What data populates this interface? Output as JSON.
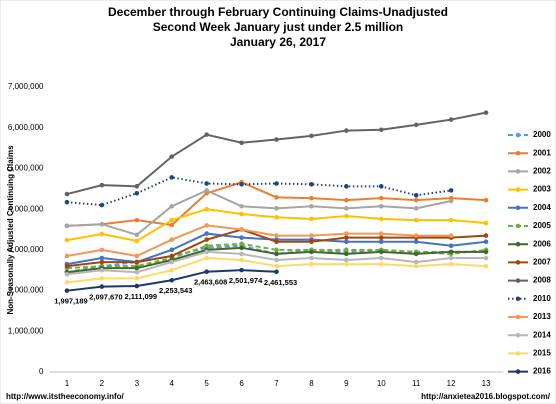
{
  "chart_data": {
    "type": "line",
    "title": [
      "December through February Continuing Claims-Unadjusted",
      "Second Week January just under 2.5 million",
      "January 26, 2017"
    ],
    "y_label": "Non-Seasonally Adjusted Continuing Claims",
    "categories": [
      "1",
      "2",
      "3",
      "4",
      "5",
      "6",
      "7",
      "8",
      "9",
      "10",
      "11",
      "12",
      "13"
    ],
    "ylim": [
      0,
      7000000
    ],
    "yticks": [
      {
        "value": 0,
        "label": "0"
      },
      {
        "value": 1000000,
        "label": "1,000,000"
      },
      {
        "value": 2000000,
        "label": "2,000,000"
      },
      {
        "value": 3000000,
        "label": "3,000,000"
      },
      {
        "value": 4000000,
        "label": "4,000,000"
      },
      {
        "value": 5000000,
        "label": "5,000,000"
      },
      {
        "value": 6000000,
        "label": "6,000,000"
      },
      {
        "value": 7000000,
        "label": "7,000,000"
      }
    ],
    "grid": false,
    "legend": "right",
    "series": [
      {
        "name": "2000",
        "color": "#5b9bd5",
        "dash": "dashed",
        "values": [
          2450000,
          2600000,
          2700000,
          2850000,
          3050000,
          3100000,
          2900000,
          3000000,
          2950000,
          3000000,
          2950000,
          2950000,
          2950000
        ]
      },
      {
        "name": "2001",
        "color": "#ed7d31",
        "dash": "solid",
        "values": [
          3590000,
          3630000,
          3730000,
          3610000,
          4390000,
          4660000,
          4290000,
          4270000,
          4220000,
          4270000,
          4220000,
          4270000,
          4220000
        ]
      },
      {
        "name": "2002",
        "color": "#a5a5a5",
        "dash": "solid",
        "values": [
          3590000,
          3630000,
          3370000,
          4070000,
          4460000,
          4070000,
          4020000,
          4070000,
          4020000,
          4070000,
          4020000,
          4200000,
          null
        ]
      },
      {
        "name": "2003",
        "color": "#ffc000",
        "dash": "solid",
        "values": [
          3240000,
          3390000,
          3220000,
          3730000,
          4000000,
          3880000,
          3800000,
          3760000,
          3830000,
          3760000,
          3730000,
          3730000,
          3660000
        ]
      },
      {
        "name": "2004",
        "color": "#4472c4",
        "dash": "solid",
        "values": [
          2650000,
          2800000,
          2700000,
          3000000,
          3400000,
          3300000,
          3250000,
          3250000,
          3200000,
          3200000,
          3200000,
          3100000,
          3200000
        ]
      },
      {
        "name": "2005",
        "color": "#70ad47",
        "dash": "dashed",
        "values": [
          2550000,
          2600000,
          2600000,
          2800000,
          3100000,
          3150000,
          3000000,
          3000000,
          3000000,
          3000000,
          2950000,
          2900000,
          3000000
        ]
      },
      {
        "name": "2006",
        "color": "#43682b",
        "dash": "solid",
        "values": [
          2450000,
          2550000,
          2550000,
          2750000,
          3000000,
          3050000,
          2900000,
          2950000,
          2900000,
          2950000,
          2900000,
          2950000,
          2950000
        ]
      },
      {
        "name": "2007",
        "color": "#9e480e",
        "dash": "solid",
        "values": [
          2600000,
          2700000,
          2700000,
          2850000,
          3250000,
          3500000,
          3200000,
          3200000,
          3300000,
          3300000,
          3300000,
          3300000,
          3350000
        ]
      },
      {
        "name": "2008",
        "color": "#636363",
        "dash": "solid",
        "values": [
          4370000,
          4590000,
          4560000,
          5290000,
          5830000,
          5630000,
          5710000,
          5800000,
          5930000,
          5950000,
          6070000,
          6200000,
          6370000
        ]
      },
      {
        "name": "2010",
        "color": "#264478",
        "dash": "dotted",
        "values": [
          4170000,
          4100000,
          4390000,
          4780000,
          4630000,
          4610000,
          4630000,
          4610000,
          4560000,
          4560000,
          4340000,
          4460000,
          null
        ]
      },
      {
        "name": "2013",
        "color": "#f1975a",
        "dash": "solid",
        "values": [
          2850000,
          3000000,
          2850000,
          3250000,
          3600000,
          3500000,
          3350000,
          3350000,
          3400000,
          3400000,
          3350000,
          3350000,
          null
        ]
      },
      {
        "name": "2014",
        "color": "#b7b7b7",
        "dash": "solid",
        "values": [
          2400000,
          2500000,
          2450000,
          2700000,
          2950000,
          2900000,
          2750000,
          2800000,
          2750000,
          2800000,
          2700000,
          2800000,
          2800000
        ]
      },
      {
        "name": "2015",
        "color": "#ffd966",
        "dash": "solid",
        "values": [
          2200000,
          2300000,
          2300000,
          2500000,
          2800000,
          2750000,
          2600000,
          2650000,
          2650000,
          2650000,
          2600000,
          2650000,
          2600000
        ]
      },
      {
        "name": "2016",
        "color": "#203864",
        "dash": "solid",
        "values": [
          1997189,
          2097670,
          2111099,
          2253543,
          2463608,
          2501974,
          2461553,
          null,
          null,
          null,
          null,
          null,
          null
        ],
        "value_labels": [
          "1,997,189",
          "2,097,670",
          "2,111,099",
          "2,253,543",
          "2,463,608",
          "2,501,974",
          "2,461,553",
          null,
          null,
          null,
          null,
          null,
          null
        ]
      }
    ]
  },
  "footer": {
    "left": "http://www.itstheeconomy.info/",
    "right": "http://anxietea2016.blogspot.com/"
  }
}
